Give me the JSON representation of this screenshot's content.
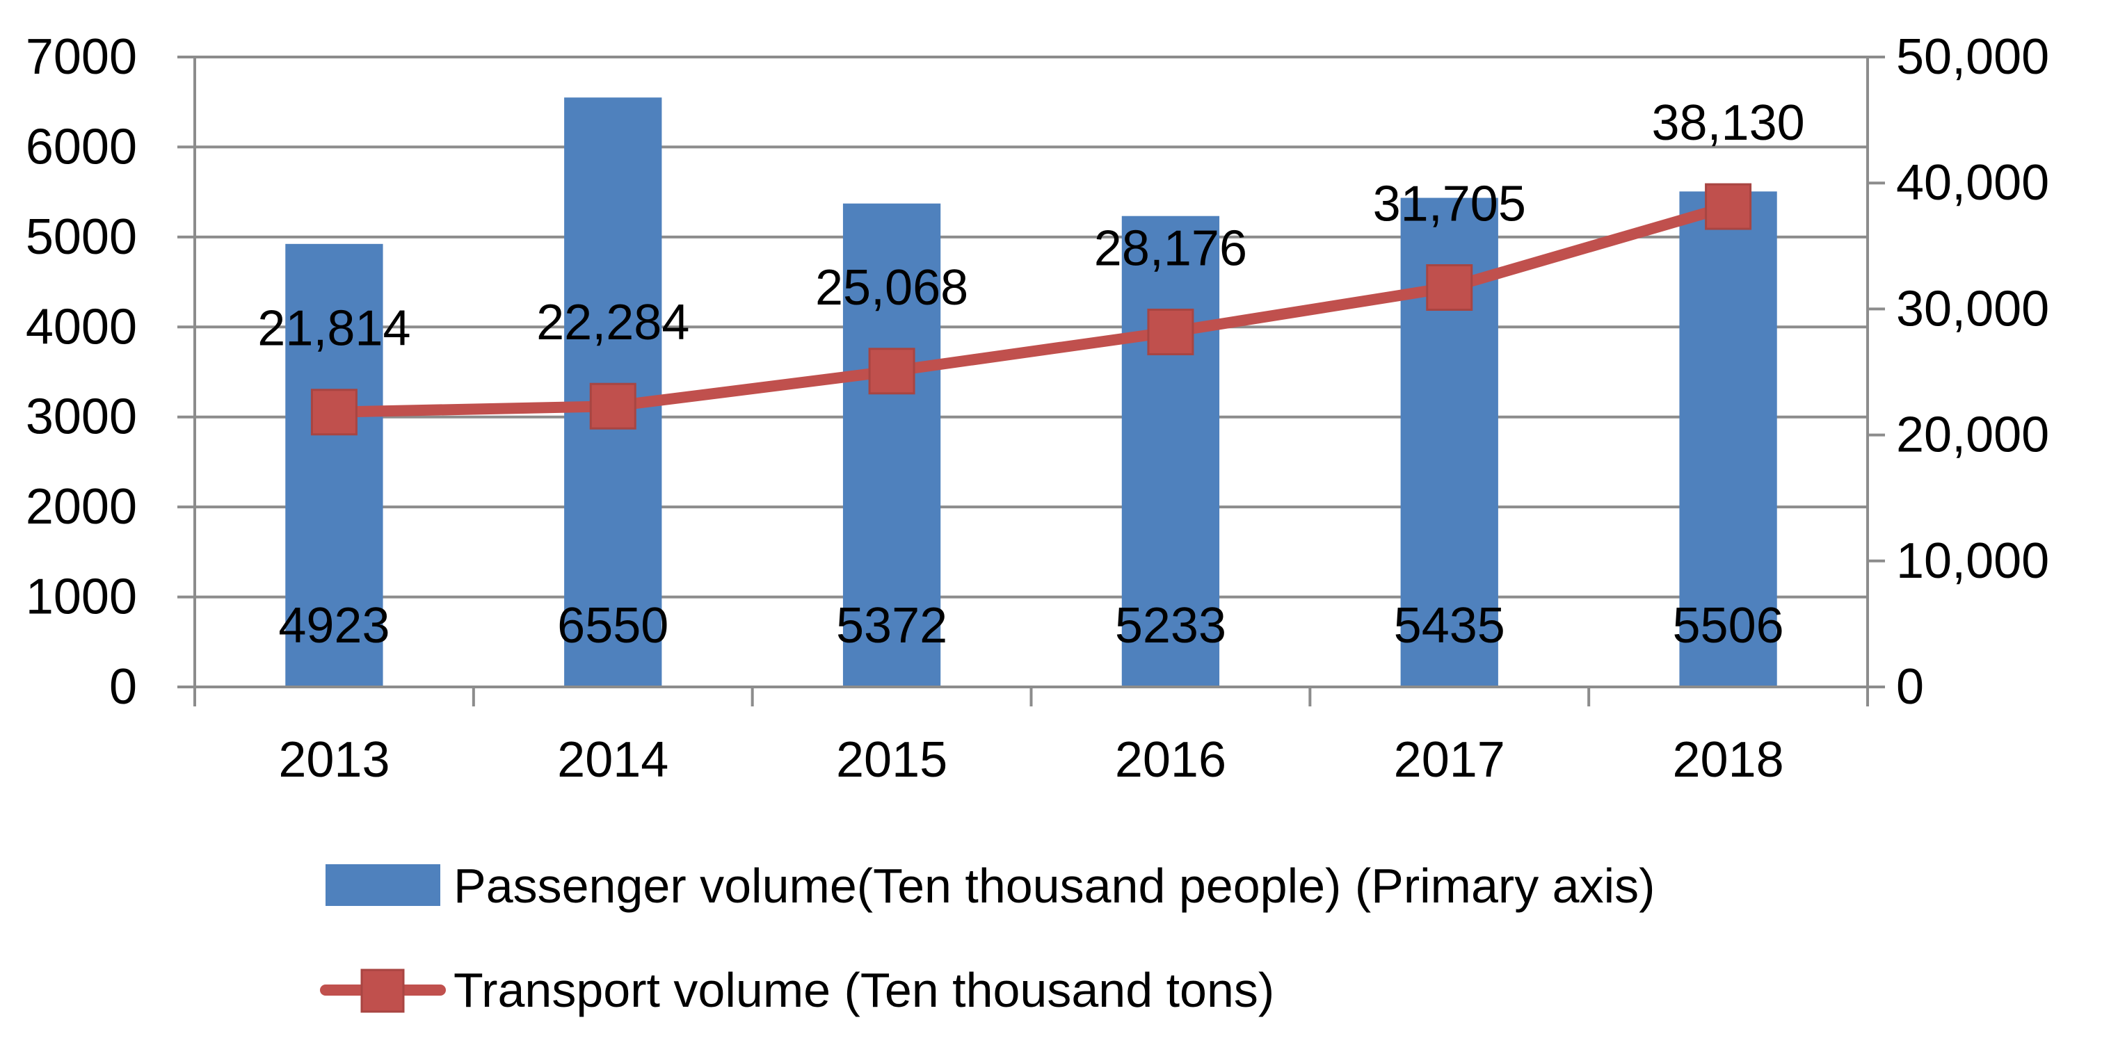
{
  "chart_data": {
    "type": "bar+line",
    "categories": [
      "2013",
      "2014",
      "2015",
      "2016",
      "2017",
      "2018"
    ],
    "primary_axis": {
      "min": 0,
      "max": 7000,
      "ticks": [
        "0",
        "1000",
        "2000",
        "3000",
        "4000",
        "5000",
        "6000",
        "7000"
      ]
    },
    "secondary_axis": {
      "min": 0,
      "max": 50000,
      "ticks": [
        "0",
        "10,000",
        "20,000",
        "30,000",
        "40,000",
        "50,000"
      ]
    },
    "series": [
      {
        "name": "Passenger volume(Ten thousand people)    (Primary axis)",
        "type": "bar",
        "axis": "primary",
        "color": "#4f81bd",
        "values": [
          4923,
          6550,
          5372,
          5233,
          5435,
          5506
        ],
        "labels": [
          "4923",
          "6550",
          "5372",
          "5233",
          "5435",
          "5506"
        ]
      },
      {
        "name": "Transport volume (Ten thousand tons)",
        "type": "line",
        "axis": "secondary",
        "color": "#c0504d",
        "values": [
          21814,
          22284,
          25068,
          28176,
          31705,
          38130
        ],
        "labels": [
          "21,814",
          "22,284",
          "25,068",
          "28,176",
          "31,705",
          "38,130"
        ]
      }
    ],
    "grid": true,
    "legend_position": "bottom"
  }
}
